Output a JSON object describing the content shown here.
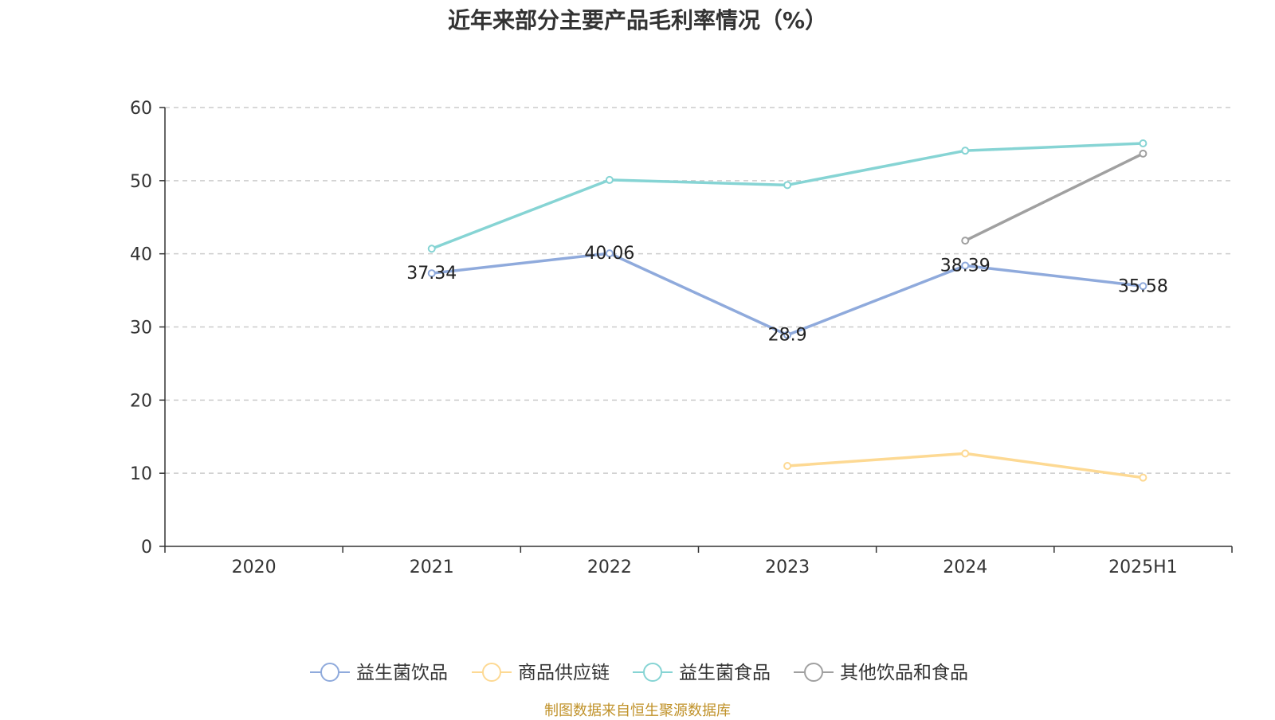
{
  "chart_data": {
    "type": "line",
    "title": "近年来部分主要产品毛利率情况（%）",
    "xlabel": "",
    "ylabel": "",
    "categories": [
      "2020",
      "2021",
      "2022",
      "2023",
      "2024",
      "2025H1"
    ],
    "ylim": [
      0,
      60
    ],
    "yticks": [
      "0",
      "10",
      "20",
      "30",
      "40",
      "50",
      "60"
    ],
    "grid": true,
    "legend_position": "bottom",
    "series": [
      {
        "name": "益生菌饮品",
        "color": "#8faadc",
        "values": [
          null,
          37.34,
          40.06,
          28.9,
          38.39,
          35.58
        ],
        "labels": [
          null,
          "37.34",
          "40.06",
          "28.9",
          "38.39",
          "35.58"
        ]
      },
      {
        "name": "商品供应链",
        "color": "#fdd993",
        "values": [
          null,
          null,
          null,
          11.0,
          12.7,
          9.4
        ],
        "labels": []
      },
      {
        "name": "益生菌食品",
        "color": "#86d4d4",
        "values": [
          null,
          40.7,
          50.1,
          49.4,
          54.1,
          55.1
        ],
        "labels": []
      },
      {
        "name": "其他饮品和食品",
        "color": "#a0a0a0",
        "values": [
          null,
          null,
          null,
          null,
          41.8,
          53.7
        ],
        "labels": []
      }
    ]
  },
  "source": "制图数据来自恒生聚源数据库"
}
